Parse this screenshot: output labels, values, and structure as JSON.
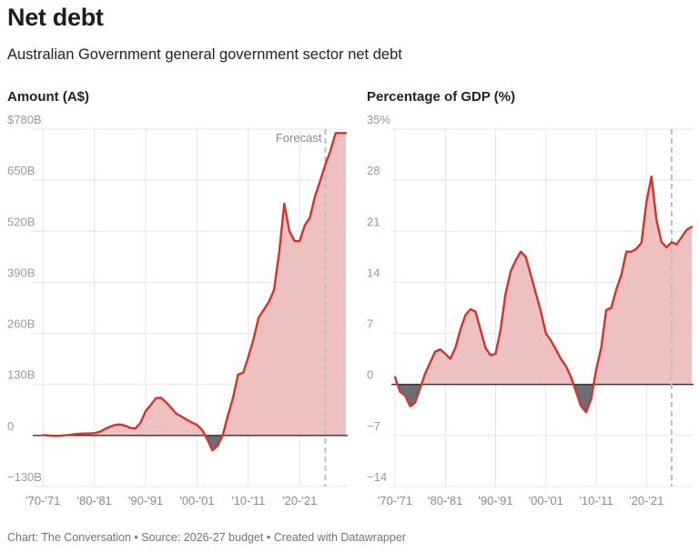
{
  "header": {
    "title": "Net debt",
    "subtitle": "Australian Government general government sector net debt"
  },
  "footer": {
    "text": "Chart: The Conversation • Source: 2026-27 budget • Created with Datawrapper"
  },
  "colors": {
    "line": "#d6322b",
    "positive_fill": "#ecc1c0",
    "negative_fill": "#6d6d78",
    "grid": "#e4e4e4",
    "forecast_line": "#bdbdbd"
  },
  "chart_data": [
    {
      "type": "area",
      "title": "Amount (A$)",
      "x_tick_labels": [
        "'70-'71",
        "'80-'81",
        "'90-'91",
        "'00-'01",
        "'10-'11",
        "'20-'21"
      ],
      "x_tick_years": [
        1970,
        1980,
        1990,
        2000,
        2010,
        2020
      ],
      "y_tick_labels": [
        "$780B",
        "650B",
        "520B",
        "390B",
        "260B",
        "130B",
        "0",
        "−130B"
      ],
      "y_ticks": [
        780,
        650,
        520,
        390,
        260,
        130,
        0,
        -130
      ],
      "ylim": [
        -130,
        780
      ],
      "xlim": [
        1968,
        2029
      ],
      "annotation": "Forecast",
      "forecast_start": 2025,
      "x": [
        1970,
        1971,
        1972,
        1973,
        1974,
        1975,
        1976,
        1977,
        1978,
        1979,
        1980,
        1981,
        1982,
        1983,
        1984,
        1985,
        1986,
        1987,
        1988,
        1989,
        1990,
        1991,
        1992,
        1993,
        1994,
        1995,
        1996,
        1997,
        1998,
        1999,
        2000,
        2001,
        2002,
        2003,
        2004,
        2005,
        2006,
        2007,
        2008,
        2009,
        2010,
        2011,
        2012,
        2013,
        2014,
        2015,
        2016,
        2017,
        2018,
        2019,
        2020,
        2021,
        2022,
        2023,
        2024,
        2025,
        2026,
        2027,
        2028,
        2029
      ],
      "values": [
        1,
        0,
        -1,
        -1,
        0,
        1,
        3,
        4,
        5,
        5,
        6,
        9,
        16,
        22,
        27,
        28,
        25,
        19,
        18,
        33,
        62,
        78,
        95,
        96,
        84,
        70,
        55,
        48,
        40,
        33,
        27,
        14,
        -10,
        -38,
        -27,
        0,
        50,
        95,
        155,
        160,
        200,
        245,
        300,
        320,
        340,
        370,
        465,
        590,
        520,
        495,
        495,
        535,
        555,
        610,
        648,
        690,
        725,
        770,
        770,
        770
      ]
    },
    {
      "type": "area",
      "title": "Percentage of GDP (%)",
      "x_tick_labels": [
        "'70-'71",
        "'80-'81",
        "'90-'91",
        "'00-'01",
        "'10-'11",
        "'20-'21"
      ],
      "x_tick_years": [
        1970,
        1980,
        1990,
        2000,
        2010,
        2020
      ],
      "y_tick_labels": [
        "35%",
        "28",
        "21",
        "14",
        "7",
        "0",
        "−7",
        "−14"
      ],
      "y_ticks": [
        35,
        28,
        21,
        14,
        7,
        0,
        -7,
        -14
      ],
      "ylim": [
        -14,
        35
      ],
      "xlim": [
        1970,
        2029
      ],
      "forecast_start": 2025,
      "x": [
        1970,
        1971,
        1972,
        1973,
        1974,
        1975,
        1976,
        1977,
        1978,
        1979,
        1980,
        1981,
        1982,
        1983,
        1984,
        1985,
        1986,
        1987,
        1988,
        1989,
        1990,
        1991,
        1992,
        1993,
        1994,
        1995,
        1996,
        1997,
        1998,
        1999,
        2000,
        2001,
        2002,
        2003,
        2004,
        2005,
        2006,
        2007,
        2008,
        2009,
        2010,
        2011,
        2012,
        2013,
        2014,
        2015,
        2016,
        2017,
        2018,
        2019,
        2020,
        2021,
        2022,
        2023,
        2024,
        2025,
        2026,
        2027,
        2028,
        2029
      ],
      "values": [
        1,
        -1,
        -1.5,
        -3,
        -2.5,
        -0.5,
        1.5,
        3,
        4.5,
        4.8,
        4.2,
        3.5,
        5,
        7.5,
        9.5,
        10.3,
        10,
        7.5,
        5,
        4,
        4.2,
        7.5,
        12.5,
        15.5,
        17,
        18.2,
        17.5,
        15,
        12.5,
        10,
        7,
        6,
        4.8,
        3.5,
        2.5,
        1,
        -1,
        -3,
        -3.8,
        -2,
        2,
        5,
        10.2,
        10.5,
        13,
        15,
        18.2,
        18.2,
        18.6,
        19.4,
        25,
        28.5,
        22.5,
        19.5,
        18.8,
        19.5,
        19.2,
        20.2,
        21.2,
        21.6
      ]
    }
  ]
}
